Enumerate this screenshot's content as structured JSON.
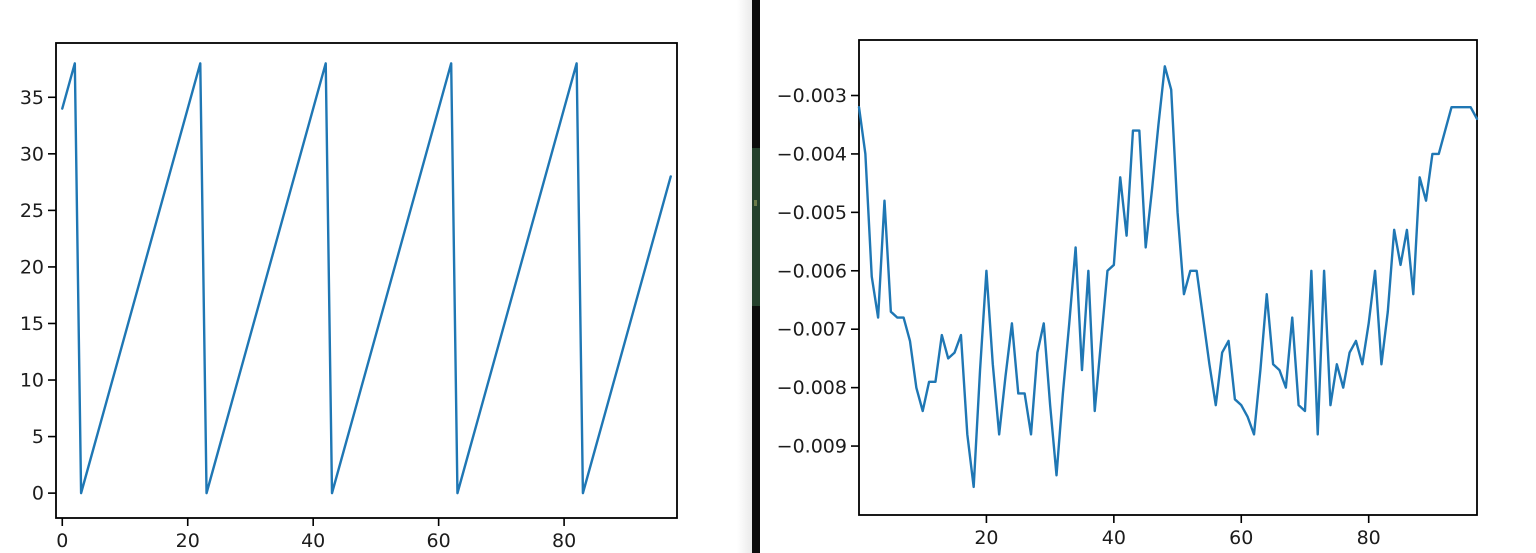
{
  "window": {
    "description": "Two side-by-side line plot windows separated by a dark divider bar",
    "background_color": "#ffffff",
    "divider_color": "#0c0c0c",
    "divider_accent_color": "#24402c"
  },
  "chart_data": [
    {
      "type": "line",
      "title": "",
      "xlabel": "",
      "ylabel": "",
      "grid": false,
      "legend_position": "none",
      "line_color": "#1f77b4",
      "xlim": [
        -1,
        98
      ],
      "ylim": [
        -2.2,
        39.8
      ],
      "xticks": [
        0,
        20,
        40,
        60,
        80
      ],
      "xtick_labels": [
        "0",
        "20",
        "40",
        "60",
        "80"
      ],
      "yticks": [
        0,
        5,
        10,
        15,
        20,
        25,
        30,
        35
      ],
      "ytick_labels": [
        "0",
        "5",
        "10",
        "15",
        "20",
        "25",
        "30",
        "35"
      ],
      "x_start": 0,
      "x_step": 1,
      "values": [
        34,
        36,
        38,
        0,
        2,
        4,
        6,
        8,
        10,
        12,
        14,
        16,
        18,
        20,
        22,
        24,
        26,
        28,
        30,
        32,
        34,
        36,
        38,
        0,
        2,
        4,
        6,
        8,
        10,
        12,
        14,
        16,
        18,
        20,
        22,
        24,
        26,
        28,
        30,
        32,
        34,
        36,
        38,
        0,
        2,
        4,
        6,
        8,
        10,
        12,
        14,
        16,
        18,
        20,
        22,
        24,
        26,
        28,
        30,
        32,
        34,
        36,
        38,
        0,
        2,
        4,
        6,
        8,
        10,
        12,
        14,
        16,
        18,
        20,
        22,
        24,
        26,
        28,
        30,
        32,
        34,
        36,
        38,
        0,
        2,
        4,
        6,
        8,
        10,
        12,
        14,
        16,
        18,
        20,
        22,
        24,
        26,
        28
      ]
    },
    {
      "type": "line",
      "title": "",
      "xlabel": "",
      "ylabel": "",
      "grid": false,
      "legend_position": "none",
      "line_color": "#1f77b4",
      "xlim": [
        0,
        97
      ],
      "ylim": [
        -0.01018,
        -0.00205
      ],
      "xticks": [
        20,
        40,
        60,
        80
      ],
      "xtick_labels": [
        "20",
        "40",
        "60",
        "80"
      ],
      "yticks": [
        -0.009,
        -0.008,
        -0.007,
        -0.006,
        -0.005,
        -0.004,
        -0.003
      ],
      "ytick_labels": [
        "−0.009",
        "−0.008",
        "−0.007",
        "−0.006",
        "−0.005",
        "−0.004",
        "−0.003"
      ],
      "x_start": 0,
      "x_step": 1,
      "values": [
        -0.0032,
        -0.004,
        -0.0061,
        -0.0068,
        -0.0048,
        -0.0067,
        -0.0068,
        -0.0068,
        -0.0072,
        -0.008,
        -0.0084,
        -0.0079,
        -0.0079,
        -0.0071,
        -0.0075,
        -0.0074,
        -0.0071,
        -0.0088,
        -0.0097,
        -0.0077,
        -0.006,
        -0.0076,
        -0.0088,
        -0.0078,
        -0.0069,
        -0.0081,
        -0.0081,
        -0.0088,
        -0.0074,
        -0.0069,
        -0.0083,
        -0.0095,
        -0.0081,
        -0.0069,
        -0.0056,
        -0.0077,
        -0.006,
        -0.0084,
        -0.0072,
        -0.006,
        -0.0059,
        -0.0044,
        -0.0054,
        -0.0036,
        -0.0036,
        -0.0056,
        -0.0046,
        -0.0035,
        -0.0025,
        -0.0029,
        -0.005,
        -0.0064,
        -0.006,
        -0.006,
        -0.0068,
        -0.0076,
        -0.0083,
        -0.0074,
        -0.0072,
        -0.0082,
        -0.0083,
        -0.0085,
        -0.0088,
        -0.0077,
        -0.0064,
        -0.0076,
        -0.0077,
        -0.008,
        -0.0068,
        -0.0083,
        -0.0084,
        -0.006,
        -0.0088,
        -0.006,
        -0.0083,
        -0.0076,
        -0.008,
        -0.0074,
        -0.0072,
        -0.0076,
        -0.0069,
        -0.006,
        -0.0076,
        -0.0067,
        -0.0053,
        -0.0059,
        -0.0053,
        -0.0064,
        -0.0044,
        -0.0048,
        -0.004,
        -0.004,
        -0.0036,
        -0.0032,
        -0.0032,
        -0.0032,
        -0.0032,
        -0.0034
      ]
    }
  ]
}
